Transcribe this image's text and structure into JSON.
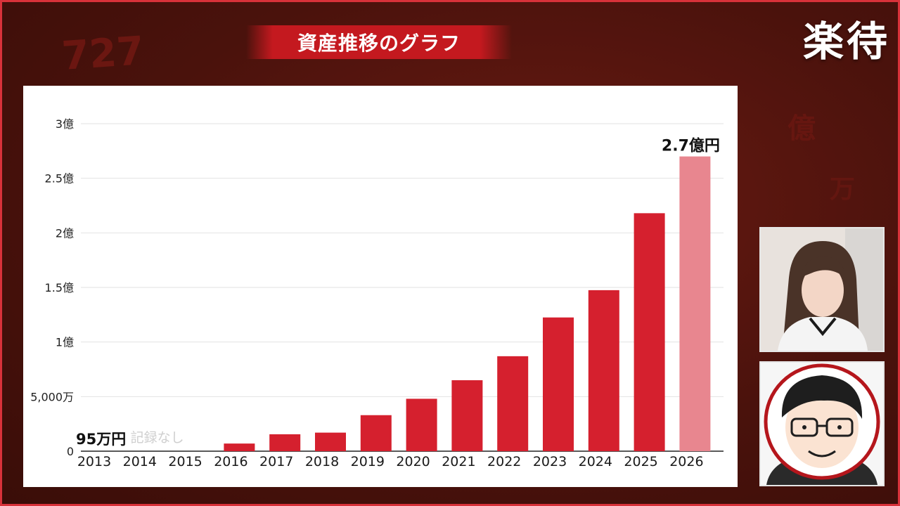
{
  "header": {
    "title": "資産推移のグラフ",
    "channel_logo": "楽待"
  },
  "colors": {
    "bar": "#d5202e",
    "bar_projected": "#e8868f",
    "background": "#4a120c",
    "banner": "#c4191f"
  },
  "chart_data": {
    "type": "bar",
    "categories": [
      "2013",
      "2014",
      "2015",
      "2016",
      "2017",
      "2018",
      "2019",
      "2020",
      "2021",
      "2022",
      "2023",
      "2024",
      "2025",
      "2026"
    ],
    "series": [
      {
        "values": [
          95,
          null,
          null,
          700,
          1550,
          1700,
          3300,
          4800,
          6500,
          8700,
          12250,
          14750,
          21800,
          27000
        ]
      }
    ],
    "value_unit": "万",
    "projected_categories": [
      "2026"
    ],
    "ylim": [
      0,
      30000
    ],
    "y_ticks": [
      {
        "value": 0,
        "label": "0"
      },
      {
        "value": 5000,
        "label": "5,000万"
      },
      {
        "value": 10000,
        "label": "1億"
      },
      {
        "value": 15000,
        "label": "1.5億"
      },
      {
        "value": 20000,
        "label": "2億"
      },
      {
        "value": 25000,
        "label": "2.5億"
      },
      {
        "value": 30000,
        "label": "3億"
      }
    ],
    "annotations": [
      {
        "category": "2013",
        "text": "95万円"
      },
      {
        "category": "2015",
        "text": "記録なし"
      },
      {
        "category": "2026",
        "text": "2.7億円"
      }
    ],
    "grid": true,
    "legend": "none",
    "title": "",
    "xlabel": "",
    "ylabel": ""
  },
  "cameras": {
    "host": {
      "icon": "host-video-feed"
    },
    "guest": {
      "icon": "guest-illustration-avatar"
    }
  }
}
